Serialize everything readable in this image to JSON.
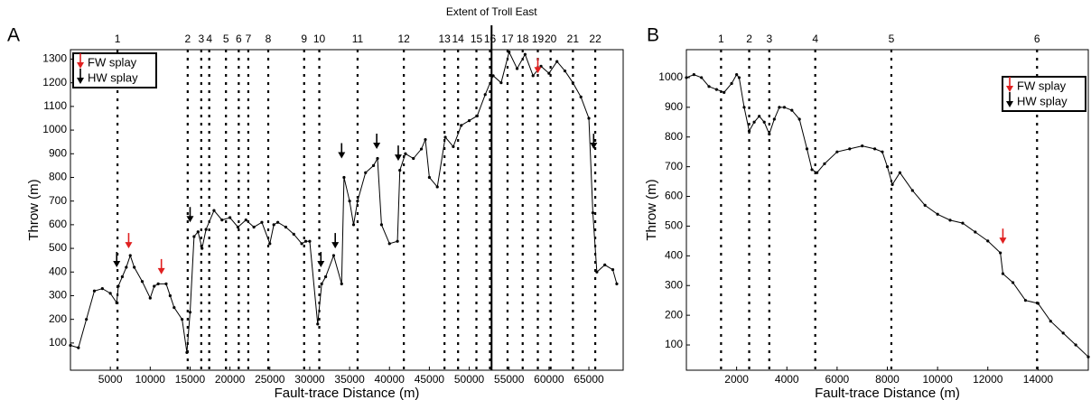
{
  "chart_data": [
    {
      "type": "line",
      "panel_label": "A",
      "x_label": "Fault-trace Distance (m)",
      "y_label": "Throw (m)",
      "xlim": [
        0,
        69300
      ],
      "ylim": [
        -15,
        1340
      ],
      "xticks": [
        5000,
        10000,
        15000,
        20000,
        25000,
        30000,
        35000,
        40000,
        45000,
        50000,
        55000,
        60000,
        65000
      ],
      "yticks": [
        100,
        200,
        300,
        400,
        500,
        600,
        700,
        800,
        900,
        1000,
        1100,
        1200,
        1300
      ],
      "x": [
        0,
        1000,
        2000,
        3000,
        4000,
        5000,
        5800,
        6000,
        6500,
        7000,
        7500,
        8000,
        9000,
        10000,
        10500,
        11000,
        12000,
        12500,
        13000,
        14000,
        14600,
        15000,
        15500,
        16000,
        16500,
        17000,
        18000,
        19000,
        20000,
        21000,
        22000,
        23000,
        24000,
        25000,
        25500,
        26000,
        27000,
        28000,
        29000,
        29500,
        30000,
        31000,
        31500,
        32000,
        33000,
        34000,
        34300,
        35000,
        35500,
        36000,
        37000,
        38000,
        38500,
        39000,
        40000,
        41000,
        41300,
        42000,
        43000,
        44000,
        44500,
        45000,
        46000,
        47000,
        48000,
        49000,
        50000,
        51000,
        52000,
        53000,
        54000,
        55000,
        56000,
        57000,
        58000,
        59000,
        60000,
        61000,
        62000,
        63000,
        64000,
        65000,
        65500,
        66000,
        67000,
        68000,
        68500
      ],
      "series": [
        {
          "color": "#000000",
          "values": [
            90,
            80,
            200,
            320,
            330,
            310,
            270,
            340,
            380,
            420,
            470,
            420,
            360,
            290,
            340,
            350,
            350,
            300,
            250,
            200,
            60,
            230,
            550,
            570,
            500,
            580,
            660,
            620,
            630,
            590,
            620,
            590,
            610,
            520,
            600,
            610,
            590,
            560,
            520,
            530,
            530,
            180,
            350,
            380,
            470,
            350,
            800,
            700,
            600,
            700,
            820,
            850,
            880,
            600,
            520,
            530,
            830,
            900,
            880,
            920,
            960,
            800,
            760,
            970,
            930,
            1020,
            1040,
            1060,
            1150,
            1230,
            1200,
            1330,
            1260,
            1320,
            1230,
            1270,
            1240,
            1290,
            1250,
            1200,
            1140,
            1050,
            650,
            400,
            430,
            410,
            350
          ]
        }
      ],
      "fault_lines": {
        "labels": [
          1,
          2,
          3,
          4,
          5,
          6,
          7,
          8,
          9,
          10,
          11,
          12,
          13,
          14,
          15,
          16,
          17,
          18,
          19,
          20,
          21,
          22
        ],
        "x": [
          5900,
          14700,
          16400,
          17400,
          19500,
          21100,
          22300,
          24800,
          29300,
          31200,
          36000,
          41800,
          46900,
          48600,
          50900,
          52600,
          54800,
          56700,
          58600,
          60200,
          63000,
          65800
        ]
      },
      "annotation": {
        "text": "Extent of Troll East",
        "x": 52800
      },
      "legend": "top-left",
      "markers": [
        {
          "name": "FW splay",
          "color": "#e02020",
          "x": [
            7300,
            11400,
            58600
          ],
          "y": [
            500,
            390,
            1240
          ]
        },
        {
          "name": "HW splay",
          "color": "#000000",
          "x": [
            5800,
            15000,
            31400,
            33200,
            34000,
            38400,
            41100,
            65600
          ],
          "y": [
            420,
            610,
            420,
            500,
            880,
            920,
            870,
            920
          ]
        }
      ]
    },
    {
      "type": "line",
      "panel_label": "B",
      "x_label": "Fault-trace Distance (m)",
      "y_label": "Throw (m)",
      "xlim": [
        0,
        16000
      ],
      "ylim": [
        15,
        1094
      ],
      "xticks": [
        2000,
        4000,
        6000,
        8000,
        10000,
        12000,
        14000
      ],
      "yticks": [
        100,
        200,
        300,
        400,
        500,
        600,
        700,
        800,
        900,
        1000
      ],
      "x": [
        0,
        300,
        600,
        900,
        1200,
        1500,
        1800,
        2000,
        2100,
        2300,
        2500,
        2700,
        2900,
        3100,
        3300,
        3500,
        3700,
        3900,
        4200,
        4500,
        4800,
        5000,
        5200,
        5500,
        6000,
        6500,
        7000,
        7500,
        7800,
        8000,
        8200,
        8500,
        9000,
        9500,
        10000,
        10500,
        11000,
        11500,
        12000,
        12500,
        12600,
        13000,
        13500,
        14000,
        14500,
        15000,
        15500,
        16000
      ],
      "series": [
        {
          "color": "#000000",
          "values": [
            1000,
            1010,
            1000,
            970,
            960,
            950,
            980,
            1010,
            1000,
            900,
            820,
            850,
            870,
            850,
            810,
            860,
            900,
            900,
            890,
            860,
            760,
            690,
            680,
            710,
            750,
            760,
            770,
            760,
            750,
            700,
            640,
            680,
            620,
            570,
            540,
            520,
            510,
            480,
            450,
            410,
            340,
            310,
            250,
            240,
            180,
            140,
            100,
            60
          ]
        }
      ],
      "fault_lines": {
        "labels": [
          1,
          2,
          3,
          4,
          5,
          6
        ],
        "x": [
          1380,
          2500,
          3300,
          5130,
          8160,
          13960
        ]
      },
      "legend": "top-right",
      "markers": [
        {
          "name": "FW splay",
          "color": "#e02020",
          "x": [
            12600
          ],
          "y": [
            440
          ]
        },
        {
          "name": "HW splay",
          "color": "#000000",
          "x": [],
          "y": []
        }
      ]
    }
  ]
}
